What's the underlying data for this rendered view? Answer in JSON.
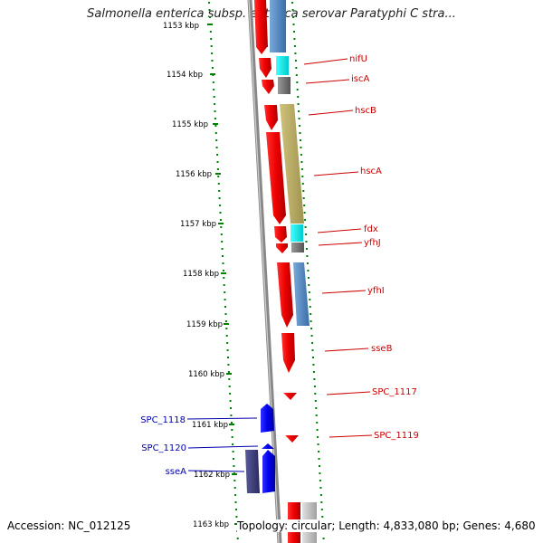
{
  "title": "Salmonella enterica subsp. enterica serovar Paratyphi C stra...",
  "accession": "Accession: NC_012125",
  "summary": "Topology: circular; Length: 4,833,080 bp; Genes: 4,680",
  "ruler_labels": [
    "1153 kbp",
    "1154 kbp",
    "1155 kbp",
    "1156 kbp",
    "1157 kbp",
    "1158 kbp",
    "1159 kbp",
    "1160 kbp",
    "1161 kbp",
    "1162 kbp",
    "1163 kbp"
  ],
  "colors": {
    "forward_gene": "#ff0000",
    "reverse_gene": "#0000ff",
    "forward_label": "#cc0000",
    "reverse_label": "#0000aa",
    "ruler_dots": "#008000",
    "backbone": "#888888"
  },
  "genes_forward": [
    "nifU",
    "iscA",
    "hscB",
    "hscA",
    "fdx",
    "yfhJ",
    "yfhI",
    "sseB",
    "SPC_1117",
    "SPC_1119"
  ],
  "genes_reverse": [
    "SPC_1118",
    "SPC_1120",
    "sseA"
  ]
}
